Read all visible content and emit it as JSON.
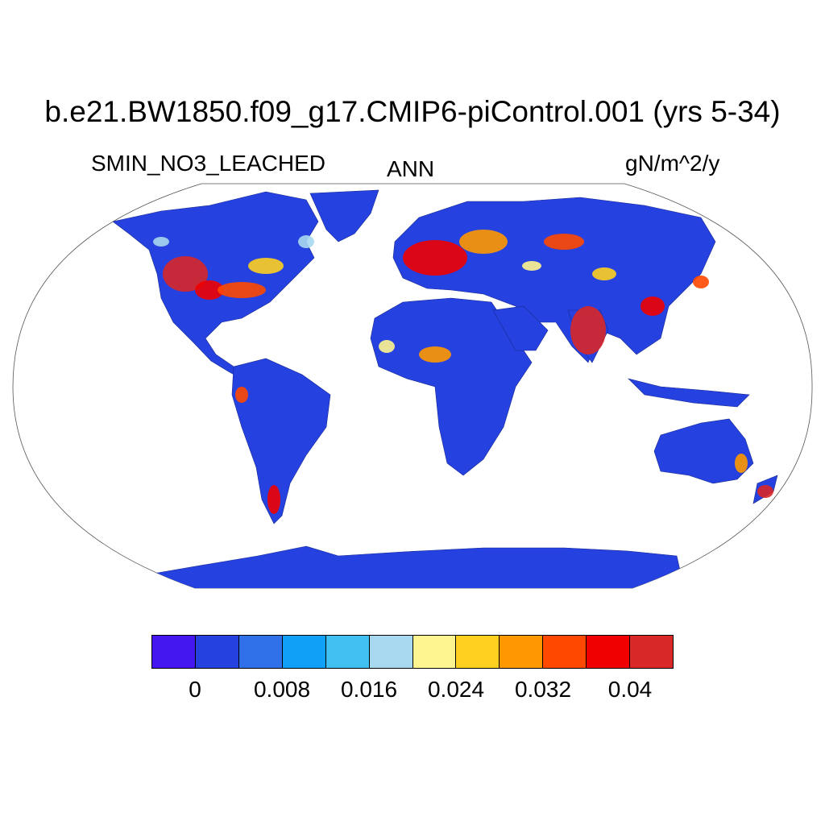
{
  "title": "b.e21.BW1850.f09_g17.CMIP6-piControl.001 (yrs 5-34)",
  "variable": "SMIN_NO3_LEACHED",
  "period": "ANN",
  "units": "gN/m^2/y",
  "colorbar": {
    "colors": [
      "#4416f0",
      "#2541e0",
      "#3070e8",
      "#10a0f8",
      "#40c0f0",
      "#a8d8f0",
      "#fff590",
      "#ffd020",
      "#ff9800",
      "#ff4800",
      "#f00000",
      "#d82828"
    ],
    "labels": [
      "0",
      "0.008",
      "0.016",
      "0.024",
      "0.032",
      "0.04"
    ]
  },
  "map": {
    "projection": "Robinson",
    "land_base_color": "#2541e0",
    "ocean_color": "#ffffff"
  }
}
